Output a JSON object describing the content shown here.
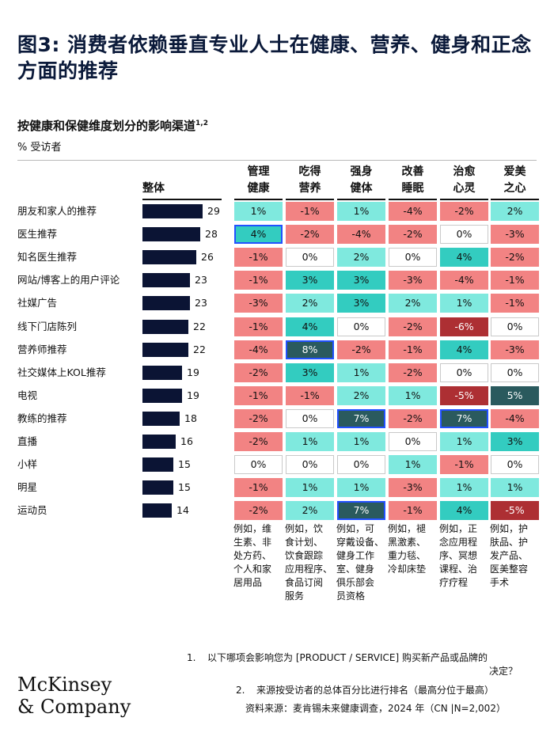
{
  "title": "图3: 消费者依赖垂直专业人士在健康、营养、健身和正念方面的推荐",
  "subtitle": "按健康和保健维度划分的影响渠道",
  "subtitle_sup": "1,2",
  "unit": "% 受访者",
  "overall_header": "整体",
  "colors": {
    "bar": "#0b1434",
    "strong_negative": "#ad2f33",
    "negative": "#f28383",
    "zero": "#ffffff",
    "low_positive": "#7fe9de",
    "positive": "#33ccc0",
    "strong_positive": "#2a5a5e",
    "highlight_border": "#2251ff"
  },
  "chart_data": {
    "type": "table",
    "categories": [
      "朋友和家人的推荐",
      "医生推荐",
      "知名医生推荐",
      "网站/博客上的用户评论",
      "社媒广告",
      "线下门店陈列",
      "营养师推荐",
      "社交媒体上KOL推荐",
      "电视",
      "教练的推荐",
      "直播",
      "小样",
      "明星",
      "运动员"
    ],
    "overall": [
      29,
      28,
      26,
      23,
      23,
      22,
      22,
      19,
      19,
      18,
      16,
      15,
      15,
      14
    ],
    "columns": [
      {
        "line1": "管理",
        "line2": "健康",
        "examples": [
          "例如，维",
          "生素、非",
          "处方药、",
          "个人和家",
          "居用品"
        ]
      },
      {
        "line1": "吃得",
        "line2": "营养",
        "examples": [
          "例如，饮",
          "食计划、",
          "饮食跟踪",
          "应用程序、",
          "食品订阅",
          "服务"
        ]
      },
      {
        "line1": "强身",
        "line2": "健体",
        "examples": [
          "例如，可",
          "穿戴设备、",
          "健身工作",
          "室、健身",
          "俱乐部会",
          "员资格"
        ]
      },
      {
        "line1": "改善",
        "line2": "睡眠",
        "examples": [
          "例如，褪",
          "黑激素、",
          "重力毯、",
          "冷却床垫"
        ]
      },
      {
        "line1": "治愈",
        "line2": "心灵",
        "examples": [
          "例如，正",
          "念应用程",
          "序、冥想",
          "课程、治",
          "疗疗程"
        ]
      },
      {
        "line1": "爱美",
        "line2": "之心",
        "examples": [
          "例如，护",
          "肤品、护",
          "发产品、",
          "医美整容",
          "手术"
        ]
      }
    ],
    "deltas": [
      [
        1,
        -1,
        1,
        -4,
        -2,
        2
      ],
      [
        4,
        -2,
        -4,
        -2,
        0,
        -3
      ],
      [
        -1,
        0,
        2,
        0,
        4,
        -2
      ],
      [
        -1,
        3,
        3,
        -3,
        -4,
        -1
      ],
      [
        -3,
        2,
        3,
        2,
        1,
        -1
      ],
      [
        -1,
        4,
        0,
        -2,
        -6,
        0
      ],
      [
        -4,
        8,
        -2,
        -1,
        4,
        -3
      ],
      [
        -2,
        3,
        1,
        -2,
        0,
        0
      ],
      [
        -1,
        -1,
        2,
        1,
        -5,
        5
      ],
      [
        -2,
        0,
        7,
        -2,
        7,
        -4
      ],
      [
        -2,
        1,
        1,
        0,
        1,
        3
      ],
      [
        0,
        0,
        0,
        1,
        -1,
        0
      ],
      [
        -1,
        1,
        1,
        -3,
        1,
        1
      ],
      [
        -2,
        2,
        7,
        -1,
        4,
        -5
      ]
    ],
    "highlighted_cells": [
      [
        1,
        0
      ],
      [
        6,
        1
      ],
      [
        9,
        2
      ],
      [
        9,
        4
      ],
      [
        13,
        2
      ]
    ],
    "value_suffix": "%"
  },
  "footnotes": [
    {
      "num": "1.",
      "line1": "以下哪项会影响您为 [PRODUCT / SERVICE] 购买新产品或品牌的",
      "line2": "决定？"
    },
    {
      "num": "2.",
      "line1": "来源按受访者的总体百分比进行排名（最高分位于最高）",
      "line2": ""
    }
  ],
  "source": "资料来源：麦肯锡未来健康调查，2024 年（CN |N=2,002）",
  "logo": {
    "line1": "McKinsey",
    "line2": "& Company"
  }
}
